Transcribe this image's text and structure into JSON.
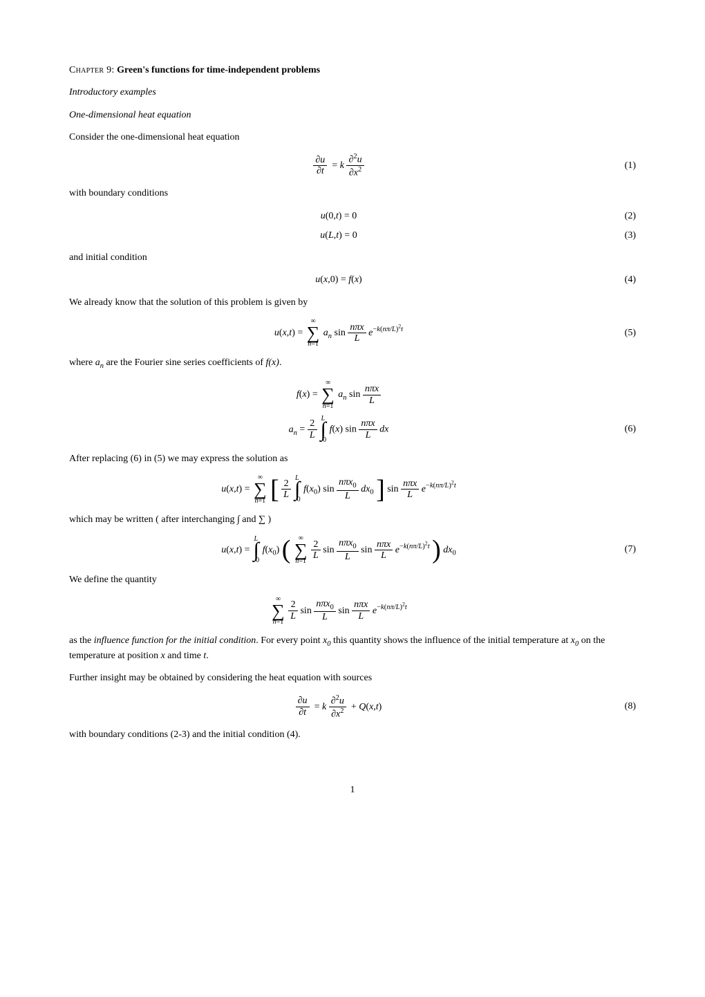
{
  "chapter_label": "Chapter 9:",
  "chapter_title": "Green's functions for time-independent problems",
  "sec1": "Introductory examples",
  "sec2": "One-dimensional heat equation",
  "p1": "Consider the one-dimensional heat equation",
  "p2": "with boundary conditions",
  "p3": "and initial condition",
  "p4": "We already know that the solution of this problem is given by",
  "p5_a": "where ",
  "p5_b": " are the Fourier sine series coefficients of ",
  "p6": "After replacing (6) in (5) we may express the solution as",
  "p7": "which may be written ( after interchanging ∫ and ∑ )",
  "p8": "We define the quantity",
  "p9_a": "as the ",
  "p9_i": "influence function for the initial condition",
  "p9_b": ". For every point ",
  "p9_c": " this quantity shows the influence of the initial temperature at ",
  "p9_d": " on the temperature at position ",
  "p9_e": " and time ",
  "p10": "Further insight may be obtained by considering the heat equation with sources",
  "p11": "with boundary conditions (2-3) and the initial condition (4).",
  "eqnum": {
    "e1": "(1)",
    "e2": "(2)",
    "e3": "(3)",
    "e4": "(4)",
    "e5": "(5)",
    "e6": "(6)",
    "e7": "(7)",
    "e8": "(8)"
  },
  "sym": {
    "an": "a",
    "an_sub": "n",
    "fx": "f(x)",
    "x0": "x",
    "x0_sub": "0",
    "x": "x",
    "t": "t",
    "dot": "."
  },
  "pagenum": "1"
}
